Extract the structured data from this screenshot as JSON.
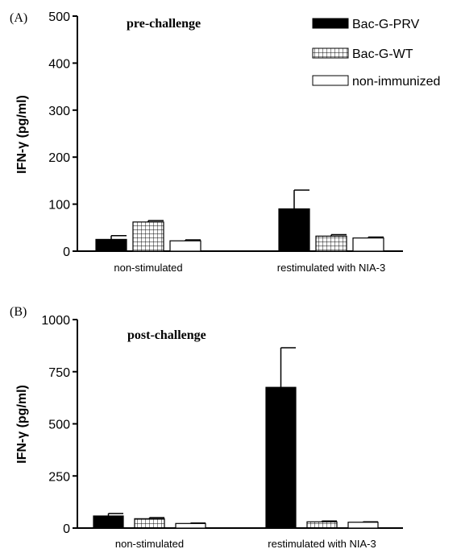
{
  "panel_labels": [
    "(A)",
    "(B)"
  ],
  "legend": [
    {
      "name": "Bac-G-PRV",
      "fill": "solid-black"
    },
    {
      "name": "Bac-G-WT",
      "fill": "grid-hatch"
    },
    {
      "name": "non-immunized",
      "fill": "white"
    }
  ],
  "chart_data": [
    {
      "type": "bar",
      "title": "pre-challenge",
      "ylabel": "IFN-γ (pg/ml)",
      "ylim": [
        0,
        500
      ],
      "yticks": [
        0,
        100,
        200,
        300,
        400,
        500
      ],
      "categories": [
        "non-stimulated",
        "restimulated with NIA-3"
      ],
      "series": [
        {
          "name": "Bac-G-PRV",
          "values": [
            25,
            90
          ],
          "errors": [
            8,
            40
          ]
        },
        {
          "name": "Bac-G-WT",
          "values": [
            62,
            32
          ],
          "errors": [
            3,
            3
          ]
        },
        {
          "name": "non-immunized",
          "values": [
            22,
            28
          ],
          "errors": [
            2,
            2
          ]
        }
      ],
      "grid": false,
      "legend_position": "top-right"
    },
    {
      "type": "bar",
      "title": "post-challenge",
      "ylabel": "IFN-γ (pg/ml)",
      "ylim": [
        0,
        1000
      ],
      "yticks": [
        0,
        250,
        500,
        750,
        1000
      ],
      "categories": [
        "non-stimulated",
        "restimulated with NIA-3"
      ],
      "series": [
        {
          "name": "Bac-G-PRV",
          "values": [
            58,
            675
          ],
          "errors": [
            12,
            190
          ]
        },
        {
          "name": "Bac-G-WT",
          "values": [
            45,
            30
          ],
          "errors": [
            5,
            4
          ]
        },
        {
          "name": "non-immunized",
          "values": [
            22,
            28
          ],
          "errors": [
            2,
            2
          ]
        }
      ],
      "grid": false
    }
  ]
}
